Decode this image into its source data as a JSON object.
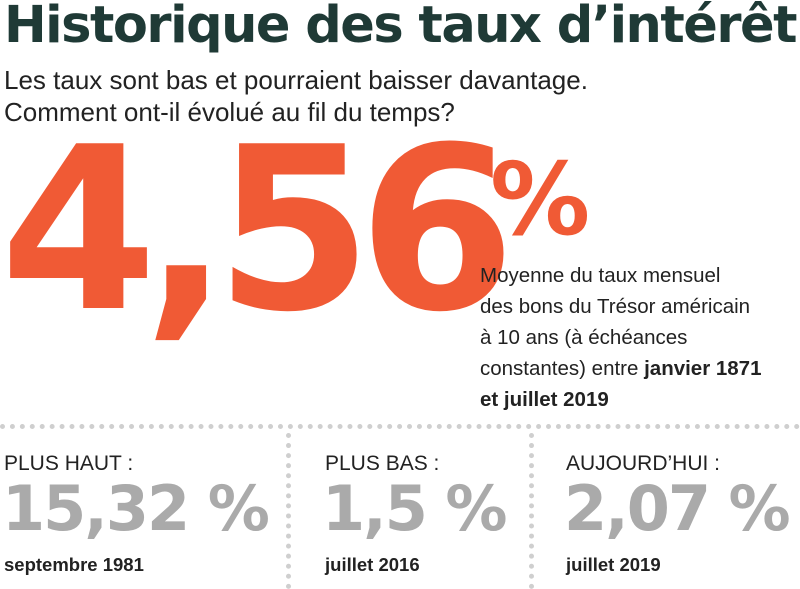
{
  "header": {
    "title": "Historique des taux d’intérêt",
    "subtitle_line1": "Les taux sont bas et pourraient baisser davantage.",
    "subtitle_line2": "Comment ont-il évolué au fil du temps?"
  },
  "highlight": {
    "value": "4,56",
    "percent_sign": "%",
    "description": {
      "line1": "Moyenne du taux mensuel",
      "line2": "des bons du Trésor américain",
      "line3": "à 10 ans (à échéances",
      "line4_text": "constantes) entre ",
      "line4_bold": "janvier 1871",
      "line5_bold": "et juillet 2019"
    }
  },
  "stats": [
    {
      "label": "PLUS HAUT :",
      "value": "15,32 %",
      "date": "septembre 1981"
    },
    {
      "label": "PLUS BAS :",
      "value": "1,5 %",
      "date": "juillet 2016"
    },
    {
      "label": "AUJOURD’HUI :",
      "value": "2,07 %",
      "date": "juillet 2019"
    }
  ],
  "colors": {
    "title": "#1f3a36",
    "accent": "#f05a35",
    "stat_value": "#aaaaaa",
    "text": "#222222",
    "divider": "#cfcfcf"
  }
}
